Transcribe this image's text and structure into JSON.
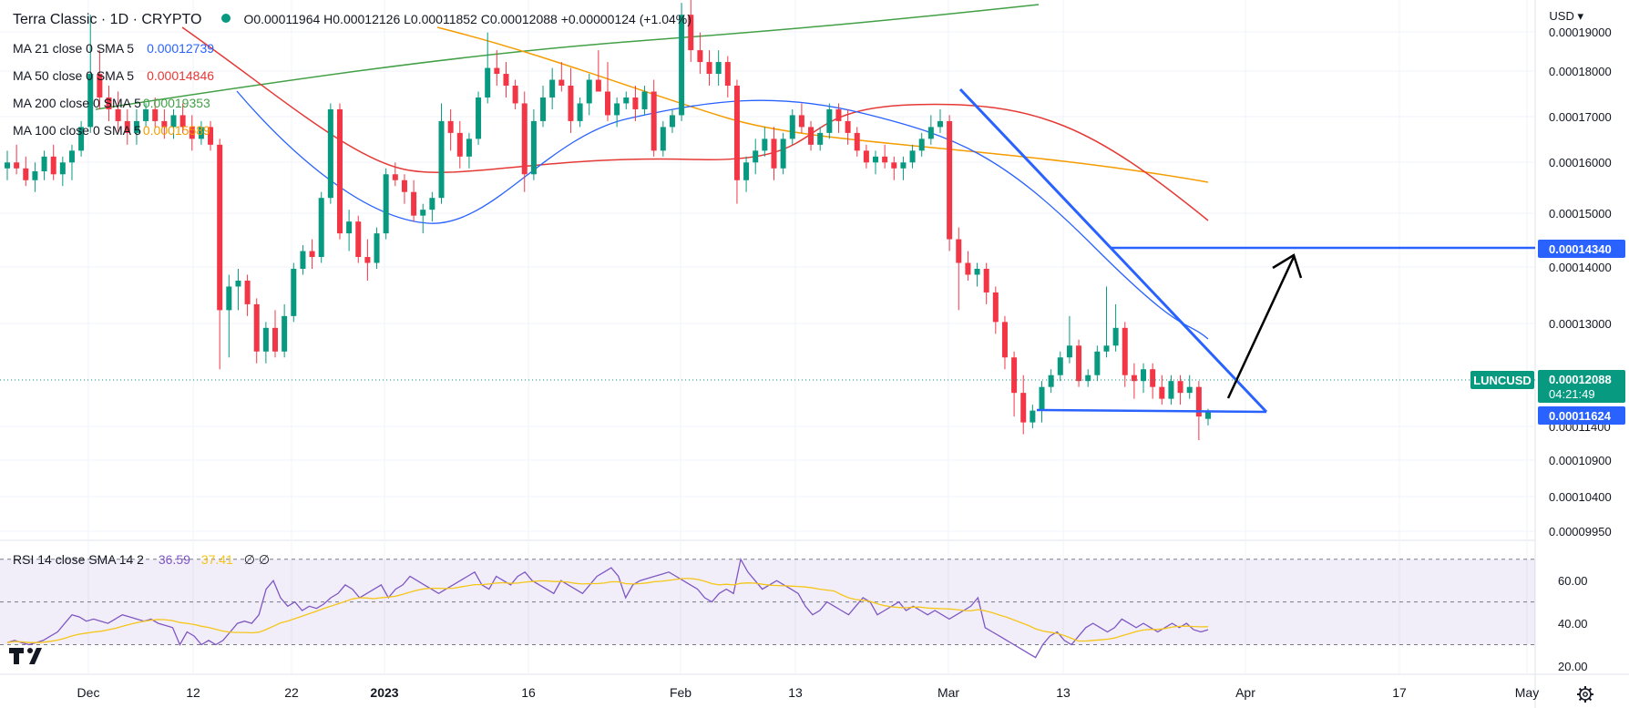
{
  "header": {
    "symbol_title": "Terra Classic · 1D · CRYPTO",
    "ohlc": "O0.00011964 H0.00012126 L0.00011852 C0.00012088 +0.00000124 (+1.04%)",
    "currency": "USD"
  },
  "indicators": [
    {
      "label": "MA 21 close 0 SMA 5",
      "value": "0.00012739",
      "color": "#2962ff"
    },
    {
      "label": "MA 50 close 0 SMA 5",
      "value": "0.00014846",
      "color": "#e53935"
    },
    {
      "label": "MA 200 close 0 SMA 5",
      "value": "0.00019353",
      "color": "#43a047"
    },
    {
      "label": "MA 100 close 0 SMA 5",
      "value": "0.00015589",
      "color": "#f59c00"
    }
  ],
  "rsi": {
    "label": "RSI 14 close SMA 14 2",
    "value": "36.59",
    "sma_value": "37.41",
    "extra": "∅ ∅",
    "levels": [
      70,
      50,
      30
    ],
    "axis_ticks": [
      "60.00",
      "40.00",
      "20.00"
    ],
    "points": [
      31,
      32,
      31,
      30,
      31,
      32,
      34,
      36,
      40,
      44,
      43,
      41,
      42,
      41,
      40,
      42,
      44,
      43,
      42,
      41,
      42,
      40,
      39,
      38,
      30,
      36,
      34,
      30,
      32,
      30,
      32,
      36,
      40,
      41,
      40,
      44,
      56,
      60,
      52,
      48,
      50,
      46,
      48,
      47,
      49,
      52,
      54,
      58,
      56,
      52,
      54,
      56,
      58,
      52,
      56,
      58,
      62,
      60,
      58,
      56,
      54,
      56,
      58,
      60,
      62,
      64,
      58,
      56,
      62,
      60,
      58,
      62,
      64,
      60,
      58,
      56,
      54,
      60,
      58,
      56,
      54,
      58,
      62,
      64,
      66,
      62,
      52,
      58,
      60,
      61,
      62,
      63,
      64,
      62,
      60,
      58,
      56,
      52,
      50,
      54,
      56,
      54,
      70,
      64,
      60,
      56,
      58,
      60,
      58,
      56,
      54,
      48,
      44,
      46,
      50,
      48,
      46,
      44,
      48,
      52,
      50,
      44,
      46,
      48,
      50,
      46,
      48,
      46,
      44,
      46,
      44,
      42,
      44,
      46,
      48,
      52,
      38,
      36,
      34,
      32,
      30,
      28,
      26,
      24,
      30,
      34,
      36,
      32,
      30,
      34,
      38,
      40,
      38,
      36,
      38,
      42,
      40,
      38,
      40,
      38,
      36,
      38,
      40,
      38,
      40,
      37,
      36,
      37
    ]
  },
  "price_axis": {
    "ticks": [
      "0.00019000",
      "0.00018000",
      "0.00017000",
      "0.00016000",
      "0.00015000",
      "0.00014000",
      "0.00013000",
      "0.00011400",
      "0.00010900",
      "0.00010400",
      "0.00009950"
    ],
    "labels": {
      "resistance": "0.00014340",
      "last": "0.00012088",
      "countdown": "04:21:49",
      "support": "0.00011624",
      "symbol": "LUNCUSD"
    }
  },
  "time_axis": {
    "ticks": [
      "Dec",
      "12",
      "22",
      "2023",
      "16",
      "Feb",
      "13",
      "Mar",
      "13",
      "Apr",
      "17",
      "May"
    ]
  },
  "chart_data": {
    "type": "candlestick",
    "title": "Terra Classic · 1D · CRYPTO",
    "ylim": [
      9.95e-05,
      0.0001905
    ],
    "colors": {
      "up": "#089981",
      "down": "#f23645"
    },
    "candles": [
      [
        0.000162,
        0.000165,
        0.00016,
        0.000163
      ],
      [
        0.000163,
        0.000166,
        0.000161,
        0.000162
      ],
      [
        0.000162,
        0.000164,
        0.000159,
        0.00016
      ],
      [
        0.00016,
        0.000163,
        0.000158,
        0.0001615
      ],
      [
        0.0001615,
        0.000165,
        0.00016,
        0.000164
      ],
      [
        0.000164,
        0.000166,
        0.00016,
        0.000161
      ],
      [
        0.000161,
        0.000164,
        0.000159,
        0.000163
      ],
      [
        0.000163,
        0.000166,
        0.00016,
        0.000165
      ],
      [
        0.000165,
        0.00017,
        0.000164,
        0.000169
      ],
      [
        0.000169,
        0.000188,
        0.000168,
        0.000178
      ],
      [
        0.000178,
        0.000182,
        0.000172,
        0.000174
      ],
      [
        0.000174,
        0.000176,
        0.00017,
        0.000172
      ],
      [
        0.000172,
        0.000175,
        0.000168,
        0.00017
      ],
      [
        0.00017,
        0.000172,
        0.000166,
        0.000168
      ],
      [
        0.000168,
        0.000172,
        0.000166,
        0.00017
      ],
      [
        0.00017,
        0.000173,
        0.000169,
        0.000172
      ],
      [
        0.000172,
        0.000174,
        0.000169,
        0.00017
      ],
      [
        0.00017,
        0.000172,
        0.000167,
        0.000169
      ],
      [
        0.000169,
        0.000172,
        0.000167,
        0.000171
      ],
      [
        0.000171,
        0.000173,
        0.000168,
        0.000169
      ],
      [
        0.000169,
        0.000171,
        0.000165,
        0.000167
      ],
      [
        0.000167,
        0.00017,
        0.000166,
        0.000169
      ],
      [
        0.000169,
        0.00017,
        0.000165,
        0.000166
      ],
      [
        0.000166,
        0.000167,
        0.000128,
        0.000138
      ],
      [
        0.000138,
        0.000144,
        0.00013,
        0.000142
      ],
      [
        0.000142,
        0.000145,
        0.000138,
        0.000143
      ],
      [
        0.000143,
        0.000144,
        0.000137,
        0.000139
      ],
      [
        0.000139,
        0.00014,
        0.000129,
        0.000131
      ],
      [
        0.000131,
        0.000136,
        0.000129,
        0.000135
      ],
      [
        0.000135,
        0.000138,
        0.00013,
        0.000131
      ],
      [
        0.000131,
        0.000139,
        0.00013,
        0.000137
      ],
      [
        0.000137,
        0.000146,
        0.000136,
        0.000145
      ],
      [
        0.000145,
        0.000149,
        0.000144,
        0.000148
      ],
      [
        0.000148,
        0.00015,
        0.000145,
        0.000147
      ],
      [
        0.000147,
        0.000158,
        0.000146,
        0.000157
      ],
      [
        0.000157,
        0.000173,
        0.000156,
        0.000172
      ],
      [
        0.000172,
        0.000173,
        0.00015,
        0.000151
      ],
      [
        0.000151,
        0.000155,
        0.000148,
        0.000153
      ],
      [
        0.000153,
        0.000154,
        0.000146,
        0.000147
      ],
      [
        0.000147,
        0.00015,
        0.000143,
        0.000146
      ],
      [
        0.000146,
        0.000152,
        0.000145,
        0.000151
      ],
      [
        0.000151,
        0.000162,
        0.00015,
        0.000161
      ],
      [
        0.000161,
        0.000163,
        0.000159,
        0.00016
      ],
      [
        0.00016,
        0.000161,
        0.000156,
        0.000158
      ],
      [
        0.000158,
        0.00016,
        0.000153,
        0.000154
      ],
      [
        0.000154,
        0.000156,
        0.000151,
        0.000155
      ],
      [
        0.000155,
        0.000158,
        0.000153,
        0.000157
      ],
      [
        0.000157,
        0.000173,
        0.000156,
        0.00017
      ],
      [
        0.00017,
        0.000172,
        0.000165,
        0.000168
      ],
      [
        0.000168,
        0.00017,
        0.000162,
        0.000164
      ],
      [
        0.000164,
        0.000168,
        0.000162,
        0.000167
      ],
      [
        0.000167,
        0.000175,
        0.000166,
        0.000174
      ],
      [
        0.000174,
        0.000185,
        0.000173,
        0.000179
      ],
      [
        0.000179,
        0.000182,
        0.000176,
        0.000178
      ],
      [
        0.000178,
        0.00018,
        0.000174,
        0.000176
      ],
      [
        0.000176,
        0.000177,
        0.000172,
        0.000173
      ],
      [
        0.000173,
        0.000175,
        0.000158,
        0.000161
      ],
      [
        0.000161,
        0.000172,
        0.00016,
        0.00017
      ],
      [
        0.00017,
        0.000176,
        0.000169,
        0.000174
      ],
      [
        0.000174,
        0.000179,
        0.000172,
        0.000177
      ],
      [
        0.000177,
        0.00018,
        0.000175,
        0.000176
      ],
      [
        0.000176,
        0.000179,
        0.000168,
        0.00017
      ],
      [
        0.00017,
        0.000174,
        0.000169,
        0.000173
      ],
      [
        0.000173,
        0.000178,
        0.000171,
        0.000177
      ],
      [
        0.000177,
        0.000182,
        0.000175,
        0.000175
      ],
      [
        0.000175,
        0.00018,
        0.00017,
        0.000171
      ],
      [
        0.000171,
        0.000174,
        0.000169,
        0.000173
      ],
      [
        0.000173,
        0.000175,
        0.000172,
        0.000174
      ],
      [
        0.000174,
        0.000176,
        0.00017,
        0.000172
      ],
      [
        0.000172,
        0.000176,
        0.000171,
        0.000175
      ],
      [
        0.000175,
        0.000177,
        0.000164,
        0.000165
      ],
      [
        0.000165,
        0.00017,
        0.000164,
        0.000169
      ],
      [
        0.000169,
        0.000172,
        0.000168,
        0.000171
      ],
      [
        0.000171,
        0.00019,
        0.00017,
        0.000188
      ],
      [
        0.000188,
        0.000195,
        0.00018,
        0.000182
      ],
      [
        0.000182,
        0.000185,
        0.000178,
        0.00018
      ],
      [
        0.00018,
        0.000182,
        0.000176,
        0.000178
      ],
      [
        0.000178,
        0.000182,
        0.000176,
        0.00018
      ],
      [
        0.00018,
        0.000181,
        0.000174,
        0.000176
      ],
      [
        0.000176,
        0.000177,
        0.000156,
        0.00016
      ],
      [
        0.00016,
        0.000164,
        0.000158,
        0.000163
      ],
      [
        0.000163,
        0.000167,
        0.000161,
        0.000165
      ],
      [
        0.000165,
        0.000169,
        0.000164,
        0.000167
      ],
      [
        0.000167,
        0.000169,
        0.00016,
        0.000162
      ],
      [
        0.000162,
        0.000168,
        0.000161,
        0.000167
      ],
      [
        0.000167,
        0.000172,
        0.000166,
        0.000171
      ],
      [
        0.000171,
        0.000173,
        0.000168,
        0.000169
      ],
      [
        0.000169,
        0.00017,
        0.000165,
        0.000166
      ],
      [
        0.000166,
        0.000169,
        0.000165,
        0.000168
      ],
      [
        0.000168,
        0.000173,
        0.000167,
        0.000172
      ],
      [
        0.000172,
        0.000173,
        0.000168,
        0.00017
      ],
      [
        0.00017,
        0.000172,
        0.000166,
        0.000168
      ],
      [
        0.000168,
        0.000169,
        0.000164,
        0.000165
      ],
      [
        0.000165,
        0.000166,
        0.000162,
        0.000163
      ],
      [
        0.000163,
        0.000165,
        0.000161,
        0.000164
      ],
      [
        0.000164,
        0.000166,
        0.000162,
        0.000163
      ],
      [
        0.000163,
        0.000164,
        0.00016,
        0.000162
      ],
      [
        0.000162,
        0.000164,
        0.00016,
        0.000163
      ],
      [
        0.000163,
        0.000166,
        0.000162,
        0.000165
      ],
      [
        0.000165,
        0.000168,
        0.000164,
        0.000167
      ],
      [
        0.000167,
        0.000171,
        0.000166,
        0.000169
      ],
      [
        0.000169,
        0.000172,
        0.000168,
        0.00017
      ],
      [
        0.00017,
        0.000171,
        0.000148,
        0.00015
      ],
      [
        0.00015,
        0.000152,
        0.000138,
        0.000146
      ],
      [
        0.000146,
        0.000148,
        0.000143,
        0.000144
      ],
      [
        0.000144,
        0.000146,
        0.000142,
        0.000145
      ],
      [
        0.000145,
        0.000146,
        0.000139,
        0.000141
      ],
      [
        0.000141,
        0.000142,
        0.000134,
        0.000136
      ],
      [
        0.000136,
        0.000137,
        0.000128,
        0.00013
      ],
      [
        0.00013,
        0.000131,
        0.00012,
        0.000124
      ],
      [
        0.000124,
        0.000127,
        0.000117,
        0.000119
      ],
      [
        0.000119,
        0.000122,
        0.000118,
        0.000121
      ],
      [
        0.000121,
        0.000126,
        0.000119,
        0.000125
      ],
      [
        0.000125,
        0.000128,
        0.000124,
        0.000127
      ],
      [
        0.000127,
        0.000131,
        0.000126,
        0.00013
      ],
      [
        0.00013,
        0.000137,
        0.000129,
        0.000132
      ],
      [
        0.000132,
        0.000133,
        0.000125,
        0.000126
      ],
      [
        0.000126,
        0.000128,
        0.000125,
        0.000127
      ],
      [
        0.000127,
        0.000132,
        0.000126,
        0.000131
      ],
      [
        0.000131,
        0.000142,
        0.00013,
        0.000132
      ],
      [
        0.000132,
        0.000139,
        0.000131,
        0.000135
      ],
      [
        0.000135,
        0.000136,
        0.000125,
        0.000127
      ],
      [
        0.000127,
        0.000129,
        0.000123,
        0.000126
      ],
      [
        0.000126,
        0.000129,
        0.000124,
        0.000128
      ],
      [
        0.000128,
        0.000129,
        0.000123,
        0.000125
      ],
      [
        0.000125,
        0.000127,
        0.000122,
        0.000123
      ],
      [
        0.000123,
        0.000127,
        0.000122,
        0.000126
      ],
      [
        0.000126,
        0.000127,
        0.000122,
        0.000124
      ],
      [
        0.000124,
        0.000127,
        0.000123,
        0.000125
      ],
      [
        0.000125,
        0.000126,
        0.000116,
        0.00012
      ],
      [
        0.0001196,
        0.0001213,
        0.0001185,
        0.0001209
      ]
    ],
    "ma_series": [
      {
        "name": "MA 21 close 0 SMA 5",
        "color": "#2962ff",
        "values": [
          0.000164,
          0.0001655,
          0.0001668,
          0.0001675,
          0.0001678,
          0.0001672,
          0.0001655,
          0.000162,
          0.000158,
          0.0001545,
          0.000152,
          0.0001505,
          0.0001495,
          0.000148,
          0.000149,
          0.000152,
          0.000156,
          0.00016,
          0.000163,
          0.000166,
          0.0001685,
          0.00017,
          0.000171,
          0.000172,
          0.0001715,
          0.00017,
          0.000169,
          0.0001685,
          0.000169,
          0.00017,
          0.0001712,
          0.0001718,
          0.0001715,
          0.0001705,
          0.0001695,
          0.000169,
          0.0001688,
          0.000168,
          0.000166,
          0.000161,
          0.000154,
          0.000147,
          0.00014,
          0.000134,
          0.00013,
          0.000128
        ]
      }
    ],
    "pattern": {
      "resistance_level": 0.0001434,
      "support_level": 0.00011624,
      "last_price": 0.00012088
    }
  }
}
